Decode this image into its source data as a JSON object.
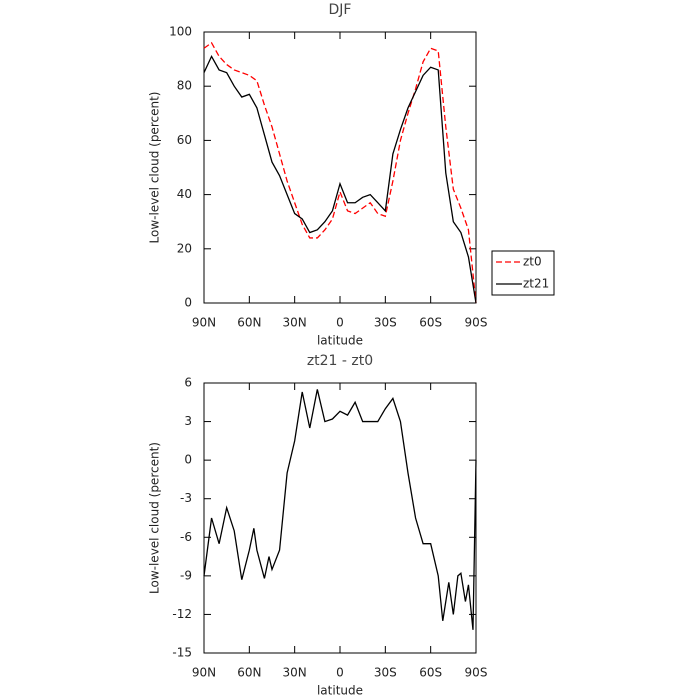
{
  "chart_data": [
    {
      "type": "line",
      "title": "DJF",
      "xlabel": "latitude",
      "ylabel": "Low-level cloud (percent)",
      "x": [
        90,
        85,
        80,
        75,
        70,
        65,
        60,
        55,
        50,
        45,
        40,
        35,
        30,
        25,
        20,
        15,
        10,
        5,
        0,
        -5,
        -10,
        -15,
        -20,
        -25,
        -30,
        -35,
        -40,
        -45,
        -50,
        -55,
        -60,
        -65,
        -70,
        -75,
        -80,
        -85,
        -90
      ],
      "series": [
        {
          "name": "zt0",
          "color": "#ff0000",
          "line_style": "dashed",
          "values": [
            94,
            96,
            91,
            88,
            86,
            85,
            84,
            82,
            73,
            65,
            55,
            45,
            37,
            29,
            24,
            24,
            27,
            31,
            41,
            34,
            33,
            35,
            37,
            33,
            32,
            45,
            60,
            70,
            79,
            89,
            94,
            93,
            65,
            42,
            35,
            27,
            0
          ]
        },
        {
          "name": "zt21",
          "color": "#000000",
          "line_style": "solid",
          "values": [
            85,
            91,
            86,
            85,
            80,
            76,
            77,
            72,
            62,
            52,
            47,
            40,
            33,
            31,
            26,
            27,
            30,
            34,
            44,
            37,
            37,
            39,
            40,
            37,
            34,
            55,
            64,
            72,
            78,
            84,
            87,
            86,
            48,
            30,
            26,
            17,
            0
          ]
        }
      ],
      "xlim": [
        90,
        -90
      ],
      "xticks": [
        {
          "value": 90,
          "label": "90N"
        },
        {
          "value": 60,
          "label": "60N"
        },
        {
          "value": 30,
          "label": "30N"
        },
        0,
        {
          "value": -30,
          "label": "30S"
        },
        {
          "value": -60,
          "label": "60S"
        },
        {
          "value": -90,
          "label": "90S"
        }
      ],
      "ylim": [
        0,
        100
      ],
      "yticks": [
        0,
        20,
        40,
        60,
        80,
        100
      ],
      "legend": "right"
    },
    {
      "type": "line",
      "title": "zt21 - zt0",
      "xlabel": "latitude",
      "ylabel": "Low-level cloud (percent)",
      "x": [
        90,
        85,
        80,
        75,
        70,
        65,
        60,
        57,
        55,
        50,
        47,
        45,
        40,
        35,
        30,
        25,
        20,
        15,
        10,
        5,
        0,
        -5,
        -10,
        -15,
        -20,
        -25,
        -30,
        -35,
        -40,
        -45,
        -50,
        -55,
        -60,
        -65,
        -68,
        -72,
        -75,
        -78,
        -80,
        -83,
        -85,
        -88,
        -90
      ],
      "series": [
        {
          "color": "#000000",
          "line_style": "solid",
          "values": [
            -9,
            -4.5,
            -6.5,
            -3.7,
            -5.5,
            -9.3,
            -7,
            -5.3,
            -7,
            -9.2,
            -7.5,
            -8.5,
            -7,
            -1,
            1.5,
            5.3,
            2.5,
            5.5,
            3,
            3.2,
            3.8,
            3.5,
            4.5,
            3,
            3,
            3,
            4,
            4.8,
            3,
            -1,
            -4.5,
            -6.5,
            -6.5,
            -9,
            -12.5,
            -9.5,
            -12,
            -9,
            -8.8,
            -11,
            -9.7,
            -13.2,
            0
          ]
        }
      ],
      "xlim": [
        90,
        -90
      ],
      "xticks": [
        {
          "value": 90,
          "label": "90N"
        },
        {
          "value": 60,
          "label": "60N"
        },
        {
          "value": 30,
          "label": "30N"
        },
        0,
        {
          "value": -30,
          "label": "30S"
        },
        {
          "value": -60,
          "label": "60S"
        },
        {
          "value": -90,
          "label": "90S"
        }
      ],
      "ylim": [
        -15,
        6
      ],
      "yticks": [
        -15,
        -12,
        -9,
        -6,
        -3,
        0,
        3,
        6
      ]
    }
  ]
}
